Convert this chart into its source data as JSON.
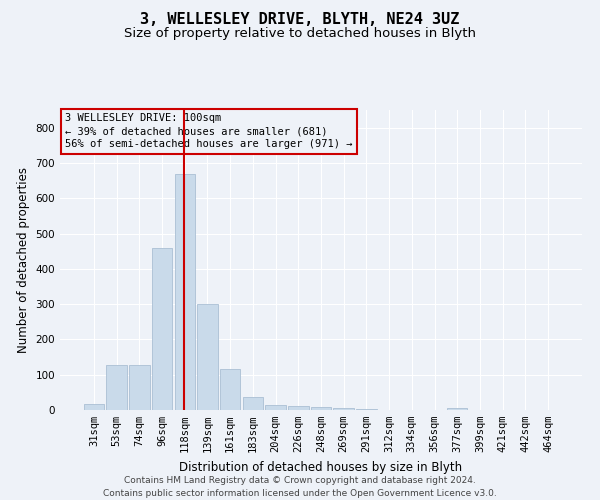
{
  "title1": "3, WELLESLEY DRIVE, BLYTH, NE24 3UZ",
  "title2": "Size of property relative to detached houses in Blyth",
  "xlabel": "Distribution of detached houses by size in Blyth",
  "ylabel": "Number of detached properties",
  "footer1": "Contains HM Land Registry data © Crown copyright and database right 2024.",
  "footer2": "Contains public sector information licensed under the Open Government Licence v3.0.",
  "annotation_line1": "3 WELLESLEY DRIVE: 100sqm",
  "annotation_line2": "← 39% of detached houses are smaller (681)",
  "annotation_line3": "56% of semi-detached houses are larger (971) →",
  "bar_labels": [
    "31sqm",
    "53sqm",
    "74sqm",
    "96sqm",
    "118sqm",
    "139sqm",
    "161sqm",
    "183sqm",
    "204sqm",
    "226sqm",
    "248sqm",
    "269sqm",
    "291sqm",
    "312sqm",
    "334sqm",
    "356sqm",
    "377sqm",
    "399sqm",
    "421sqm",
    "442sqm",
    "464sqm"
  ],
  "bar_values": [
    18,
    127,
    127,
    460,
    670,
    300,
    117,
    38,
    15,
    12,
    8,
    5,
    2,
    0,
    0,
    0,
    7,
    0,
    0,
    0,
    0
  ],
  "bar_color": "#c9daea",
  "bar_edgecolor": "#aabfd4",
  "vline_x": 3.95,
  "vline_color": "#cc0000",
  "annotation_box_edgecolor": "#cc0000",
  "ylim": [
    0,
    850
  ],
  "yticks": [
    0,
    100,
    200,
    300,
    400,
    500,
    600,
    700,
    800
  ],
  "bg_color": "#eef2f8",
  "grid_color": "#ffffff",
  "title_fontsize": 11,
  "subtitle_fontsize": 9.5,
  "axis_label_fontsize": 8.5,
  "tick_fontsize": 7.5,
  "footer_fontsize": 6.5
}
